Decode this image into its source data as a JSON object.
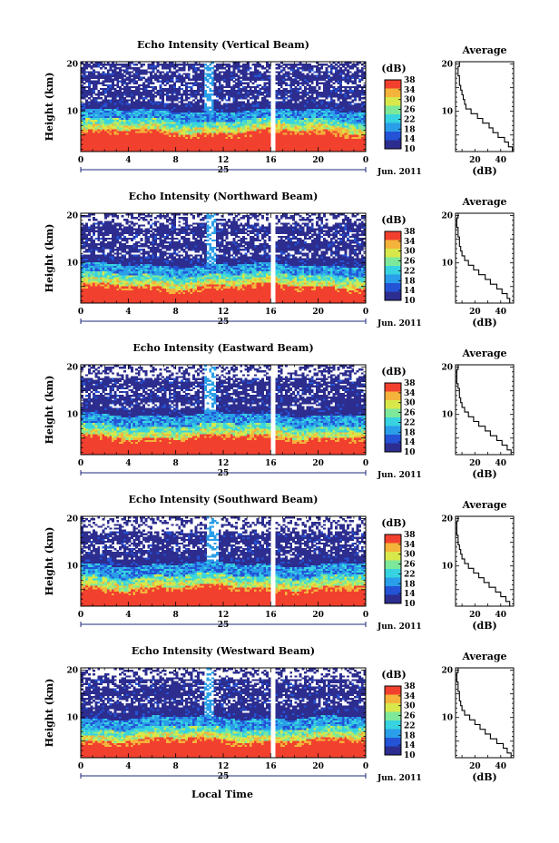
{
  "figure": {
    "xlabel": "Local Time",
    "day_label": "25",
    "month_label": "Jun. 2011"
  },
  "colorbar": {
    "unit_label": "(dB)",
    "tick_labels": [
      "38",
      "34",
      "30",
      "26",
      "22",
      "18",
      "14",
      "10"
    ],
    "range": [
      10,
      38
    ],
    "colors": [
      "#2c2d8f",
      "#2453d6",
      "#2a9ee8",
      "#37d3e0",
      "#7ee89a",
      "#d8e84a",
      "#f4b33a",
      "#f2402f"
    ]
  },
  "chart_data": [
    {
      "type": "heatmap",
      "title": "Echo Intensity (Vertical Beam)",
      "ylabel": "Height (km)",
      "x_ticks": [
        "0",
        "4",
        "8",
        "12",
        "16",
        "20",
        "0"
      ],
      "xlim": [
        0,
        24
      ],
      "y_ticks": [
        "10",
        "20"
      ],
      "ylim": [
        1.5,
        20.5
      ],
      "data_gap_hours": [
        10.8,
        16.2
      ],
      "layers_km": {
        "red_top": 5.4,
        "green_top": 8.2,
        "cyan_top": 10.2,
        "dark_top": 20.3
      },
      "profile": {
        "title": "Average",
        "xlabel": "(dB)",
        "x_ticks": [
          "20",
          "40"
        ],
        "xlim": [
          5,
          50
        ],
        "y_ticks": [
          "10",
          "20"
        ],
        "ylim": [
          1.5,
          20.5
        ],
        "height_km": [
          2,
          3,
          4,
          5,
          6,
          7,
          8,
          9,
          10,
          11,
          12,
          13,
          14,
          15,
          16,
          17,
          18,
          19,
          20
        ],
        "db": [
          49,
          46,
          43,
          38,
          34,
          31,
          26,
          22,
          17,
          13,
          12,
          11,
          10,
          9,
          8,
          8,
          7,
          7,
          8
        ]
      }
    },
    {
      "type": "heatmap",
      "title": "Echo Intensity (Northward Beam)",
      "ylabel": "Height (km)",
      "x_ticks": [
        "0",
        "4",
        "8",
        "12",
        "16",
        "20",
        "0"
      ],
      "xlim": [
        0,
        24
      ],
      "y_ticks": [
        "10",
        "20"
      ],
      "ylim": [
        1.5,
        20.5
      ],
      "data_gap_hours": [
        11.0,
        16.2
      ],
      "layers_km": {
        "red_top": 4.8,
        "green_top": 7.6,
        "cyan_top": 9.6,
        "dark_top": 18.4
      },
      "profile": {
        "title": "Average",
        "xlabel": "(dB)",
        "x_ticks": [
          "20",
          "40"
        ],
        "xlim": [
          5,
          50
        ],
        "y_ticks": [
          "10",
          "20"
        ],
        "ylim": [
          1.5,
          20.5
        ],
        "height_km": [
          2,
          3,
          4,
          5,
          6,
          7,
          8,
          9,
          10,
          11,
          12,
          13,
          14,
          15,
          16,
          17,
          18,
          19,
          20
        ],
        "db": [
          47,
          45,
          41,
          37,
          32,
          28,
          23,
          19,
          15,
          12,
          10,
          9,
          8,
          8,
          7,
          7,
          6,
          6,
          7
        ]
      }
    },
    {
      "type": "heatmap",
      "title": "Echo Intensity (Eastward Beam)",
      "ylabel": "Height (km)",
      "x_ticks": [
        "0",
        "4",
        "8",
        "12",
        "16",
        "20",
        "0"
      ],
      "xlim": [
        0,
        24
      ],
      "y_ticks": [
        "10",
        "20"
      ],
      "ylim": [
        1.5,
        20.5
      ],
      "data_gap_hours": [
        10.9,
        16.2
      ],
      "layers_km": {
        "red_top": 5.0,
        "green_top": 7.8,
        "cyan_top": 10.0,
        "dark_top": 17.6
      },
      "profile": {
        "title": "Average",
        "xlabel": "(dB)",
        "x_ticks": [
          "20",
          "40"
        ],
        "xlim": [
          5,
          50
        ],
        "y_ticks": [
          "10",
          "20"
        ],
        "ylim": [
          1.5,
          20.5
        ],
        "height_km": [
          2,
          3,
          4,
          5,
          6,
          7,
          8,
          9,
          10,
          11,
          12,
          13,
          14,
          15,
          16,
          17,
          18,
          19,
          20
        ],
        "db": [
          48,
          45,
          41,
          37,
          32,
          28,
          23,
          19,
          15,
          12,
          10,
          9,
          8,
          8,
          7,
          6,
          6,
          6,
          7
        ]
      }
    },
    {
      "type": "heatmap",
      "title": "Echo Intensity (Southward Beam)",
      "ylabel": "Height (km)",
      "x_ticks": [
        "0",
        "4",
        "8",
        "12",
        "16",
        "20",
        "0"
      ],
      "xlim": [
        0,
        24
      ],
      "y_ticks": [
        "10",
        "20"
      ],
      "ylim": [
        1.5,
        20.5
      ],
      "data_gap_hours": [
        11.2,
        16.2
      ],
      "layers_km": {
        "red_top": 5.2,
        "green_top": 8.0,
        "cyan_top": 10.4,
        "dark_top": 17.2
      },
      "profile": {
        "title": "Average",
        "xlabel": "(dB)",
        "x_ticks": [
          "20",
          "40"
        ],
        "xlim": [
          5,
          50
        ],
        "y_ticks": [
          "10",
          "20"
        ],
        "ylim": [
          1.5,
          20.5
        ],
        "height_km": [
          2,
          3,
          4,
          5,
          6,
          7,
          8,
          9,
          10,
          11,
          12,
          13,
          14,
          15,
          16,
          17,
          18,
          19,
          20
        ],
        "db": [
          47,
          44,
          40,
          36,
          31,
          27,
          23,
          19,
          15,
          12,
          10,
          9,
          8,
          7,
          7,
          6,
          6,
          6,
          7
        ]
      }
    },
    {
      "type": "heatmap",
      "title": "Echo Intensity (Westward Beam)",
      "ylabel": "Height (km)",
      "x_ticks": [
        "0",
        "4",
        "8",
        "12",
        "16",
        "20",
        "0"
      ],
      "xlim": [
        0,
        24
      ],
      "y_ticks": [
        "10",
        "20"
      ],
      "ylim": [
        1.5,
        20.5
      ],
      "data_gap_hours": [
        10.8,
        16.2
      ],
      "layers_km": {
        "red_top": 5.0,
        "green_top": 7.8,
        "cyan_top": 10.0,
        "dark_top": 18.2
      },
      "profile": {
        "title": "Average",
        "xlabel": "(dB)",
        "x_ticks": [
          "20",
          "40"
        ],
        "xlim": [
          5,
          50
        ],
        "y_ticks": [
          "10",
          "20"
        ],
        "ylim": [
          1.5,
          20.5
        ],
        "height_km": [
          2,
          3,
          4,
          5,
          6,
          7,
          8,
          9,
          10,
          11,
          12,
          13,
          14,
          15,
          16,
          17,
          18,
          19,
          20
        ],
        "db": [
          48,
          45,
          42,
          37,
          32,
          28,
          24,
          20,
          16,
          12,
          10,
          9,
          8,
          8,
          7,
          7,
          6,
          6,
          7
        ]
      }
    }
  ]
}
